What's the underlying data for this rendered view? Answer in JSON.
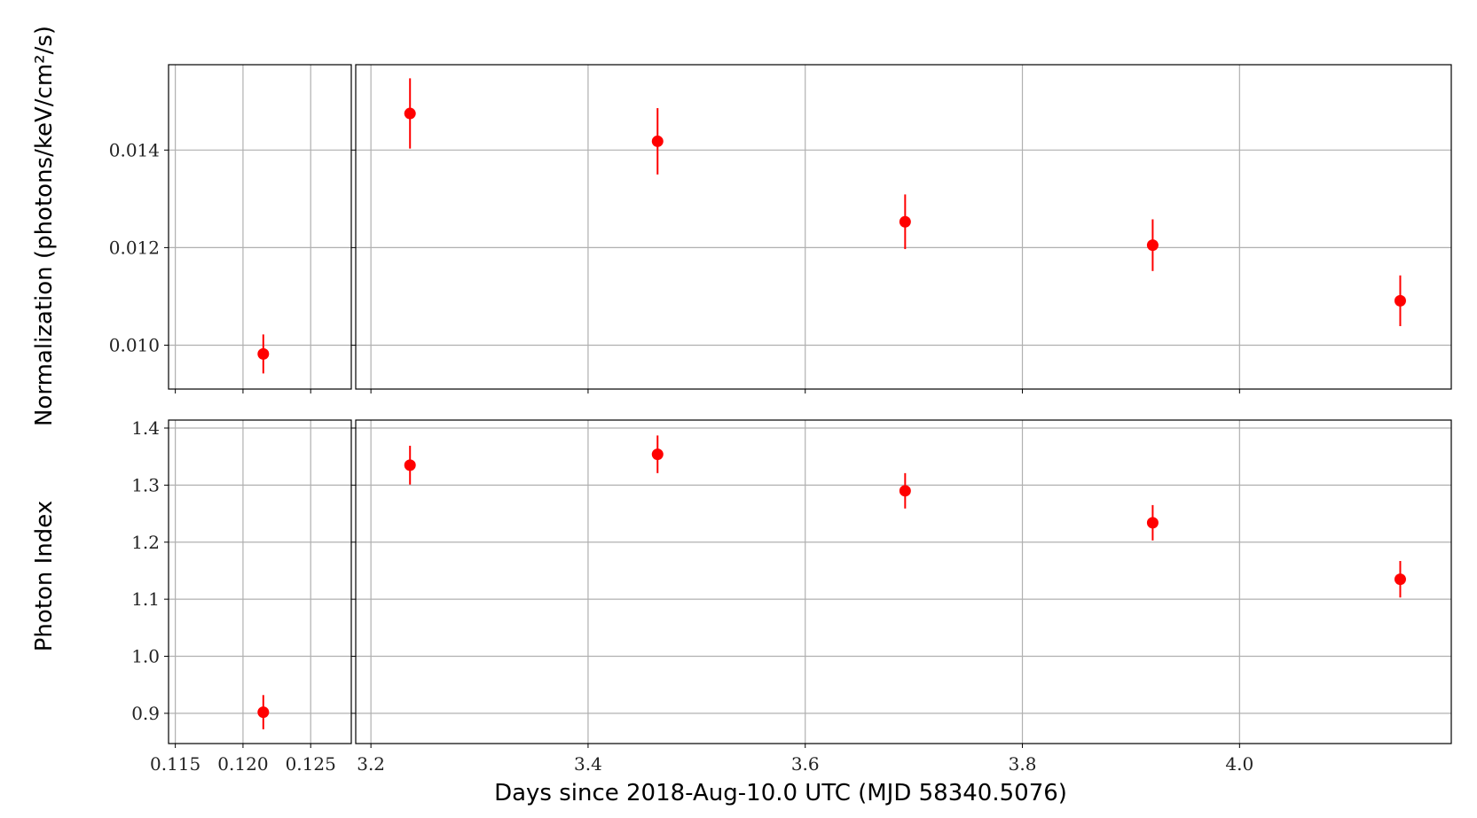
{
  "chart_data": {
    "type": "scatter",
    "marker_color": "#ff0000",
    "grid": true,
    "xlabel": "Days since 2018-Aug-10.0 UTC (MJD 58340.5076)",
    "x_segments": [
      {
        "name": "left",
        "xlim": [
          0.1145,
          0.128
        ],
        "xticks": [
          0.115,
          0.12,
          0.125
        ],
        "xtick_labels": [
          "0.115",
          "0.120",
          "0.125"
        ]
      },
      {
        "name": "right",
        "xlim": [
          3.186,
          4.195
        ],
        "xticks": [
          3.2,
          3.4,
          3.6,
          3.8,
          4.0
        ],
        "xtick_labels": [
          "3.2",
          "3.4",
          "3.6",
          "3.8",
          "4.0"
        ]
      }
    ],
    "panels": [
      {
        "ylabel": "Normalization (photons/keV/cm²/s)",
        "ylim": [
          0.0091,
          0.01575
        ],
        "yticks": [
          0.01,
          0.012,
          0.014
        ],
        "ytick_labels": [
          "0.010",
          "0.012",
          "0.014"
        ],
        "points": [
          {
            "x": 0.1215,
            "y": 0.00982,
            "err": 0.0004
          },
          {
            "x": 3.236,
            "y": 0.01475,
            "err": 0.00072
          },
          {
            "x": 3.464,
            "y": 0.01418,
            "err": 0.00068
          },
          {
            "x": 3.692,
            "y": 0.01253,
            "err": 0.00056
          },
          {
            "x": 3.92,
            "y": 0.01205,
            "err": 0.00053
          },
          {
            "x": 4.148,
            "y": 0.01091,
            "err": 0.00052
          }
        ]
      },
      {
        "ylabel": "Photon Index",
        "ylim": [
          0.847,
          1.414
        ],
        "yticks": [
          0.9,
          1.0,
          1.1,
          1.2,
          1.3,
          1.4
        ],
        "ytick_labels": [
          "0.9",
          "1.0",
          "1.1",
          "1.2",
          "1.3",
          "1.4"
        ],
        "points": [
          {
            "x": 0.1215,
            "y": 0.902,
            "err": 0.03
          },
          {
            "x": 3.236,
            "y": 1.335,
            "err": 0.034
          },
          {
            "x": 3.464,
            "y": 1.354,
            "err": 0.033
          },
          {
            "x": 3.692,
            "y": 1.29,
            "err": 0.031
          },
          {
            "x": 3.92,
            "y": 1.234,
            "err": 0.031
          },
          {
            "x": 4.148,
            "y": 1.135,
            "err": 0.032
          }
        ]
      }
    ]
  }
}
